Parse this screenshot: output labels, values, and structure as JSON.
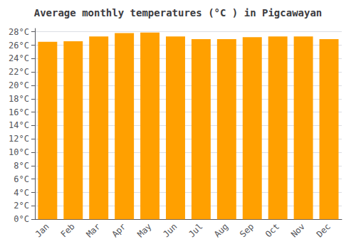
{
  "chart_data": {
    "type": "bar",
    "title": "Average monthly temperatures (°C ) in Pigcawayan",
    "categories": [
      "Jan",
      "Feb",
      "Mar",
      "Apr",
      "May",
      "Jun",
      "Jul",
      "Aug",
      "Sep",
      "Oct",
      "Nov",
      "Dec"
    ],
    "values": [
      26.5,
      26.6,
      27.3,
      27.8,
      27.9,
      27.3,
      26.9,
      26.9,
      27.2,
      27.3,
      27.3,
      26.9
    ],
    "color": "#FFA000",
    "ylim": [
      0,
      28.5
    ],
    "yticks": [
      {
        "value": 0,
        "label": "0°C"
      },
      {
        "value": 2,
        "label": "2°C"
      },
      {
        "value": 4,
        "label": "4°C"
      },
      {
        "value": 6,
        "label": "6°C"
      },
      {
        "value": 8,
        "label": "8°C"
      },
      {
        "value": 10,
        "label": "10°C"
      },
      {
        "value": 12,
        "label": "12°C"
      },
      {
        "value": 14,
        "label": "14°C"
      },
      {
        "value": 16,
        "label": "16°C"
      },
      {
        "value": 18,
        "label": "18°C"
      },
      {
        "value": 20,
        "label": "20°C"
      },
      {
        "value": 22,
        "label": "22°C"
      },
      {
        "value": 24,
        "label": "24°C"
      },
      {
        "value": 26,
        "label": "26°C"
      },
      {
        "value": 28,
        "label": "28°C"
      }
    ],
    "grid": true
  }
}
